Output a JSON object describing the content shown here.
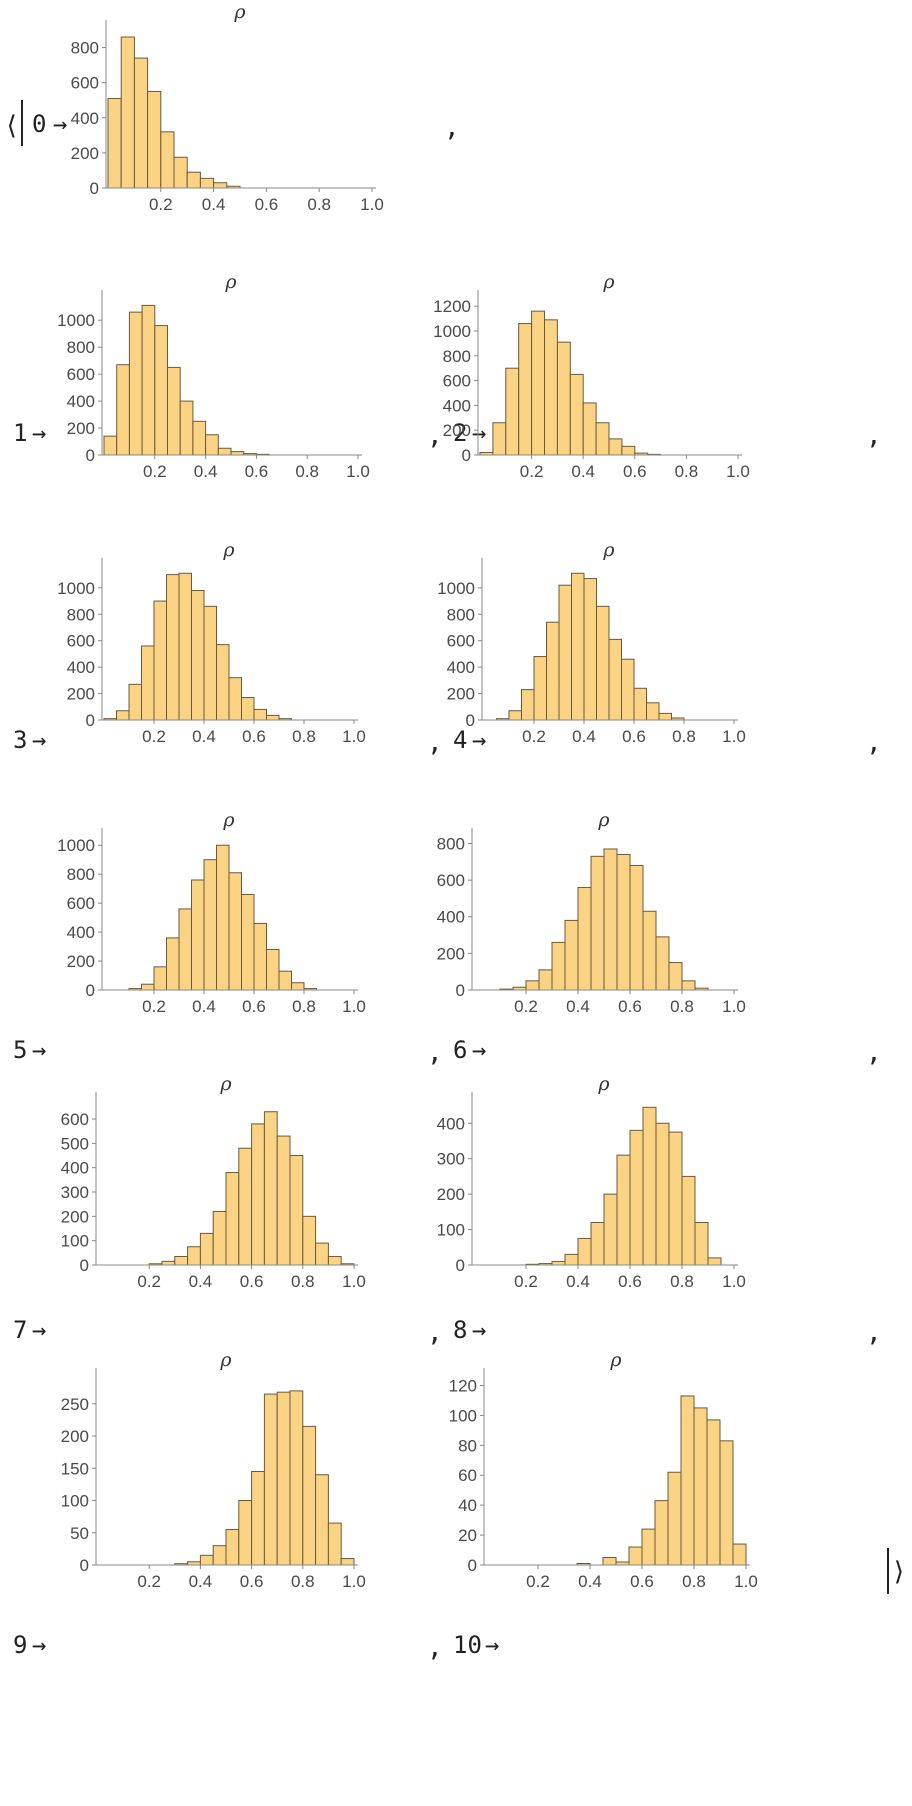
{
  "open_delim": "⟨",
  "close_delim": "⟩",
  "arrow": "→",
  "comma": ",",
  "colors": {
    "bar_fill": "#fbd384",
    "bar_edge": "#6b5a3a",
    "axis": "#888888"
  },
  "chart_data": [
    {
      "type": "bar",
      "key": "0",
      "title": "ρ",
      "bin_width": 0.05,
      "x_start": 0.0,
      "xlim": [
        0,
        1
      ],
      "ylim": [
        0,
        900
      ],
      "xticks": [
        "0.2",
        "0.4",
        "0.6",
        "0.8",
        "1.0"
      ],
      "yticks": [
        "0",
        "200",
        "400",
        "600",
        "800"
      ],
      "series": [
        {
          "values": [
            510,
            860,
            740,
            550,
            320,
            175,
            90,
            55,
            30,
            10,
            0,
            0,
            0,
            0,
            0,
            0,
            0,
            0,
            0,
            0
          ]
        }
      ]
    },
    {
      "type": "bar",
      "key": "1",
      "title": "ρ",
      "bin_width": 0.05,
      "x_start": 0.0,
      "xlim": [
        0,
        1
      ],
      "ylim": [
        0,
        1150
      ],
      "xticks": [
        "0.2",
        "0.4",
        "0.6",
        "0.8",
        "1.0"
      ],
      "yticks": [
        "0",
        "200",
        "400",
        "600",
        "800",
        "1000"
      ],
      "series": [
        {
          "values": [
            140,
            670,
            1060,
            1110,
            960,
            650,
            400,
            250,
            150,
            50,
            25,
            10,
            5,
            0,
            0,
            0,
            0,
            0,
            0,
            0
          ]
        }
      ]
    },
    {
      "type": "bar",
      "key": "2",
      "title": "ρ",
      "bin_width": 0.05,
      "x_start": 0.0,
      "xlim": [
        0,
        1
      ],
      "ylim": [
        0,
        1250
      ],
      "xticks": [
        "0.2",
        "0.4",
        "0.6",
        "0.8",
        "1.0"
      ],
      "yticks": [
        "0",
        "200",
        "400",
        "600",
        "800",
        "1000",
        "1200"
      ],
      "series": [
        {
          "values": [
            20,
            260,
            700,
            1060,
            1160,
            1090,
            910,
            650,
            420,
            260,
            130,
            70,
            15,
            5,
            0,
            0,
            0,
            0,
            0,
            0
          ]
        }
      ]
    },
    {
      "type": "bar",
      "key": "3",
      "title": "ρ",
      "bin_width": 0.05,
      "x_start": 0.0,
      "xlim": [
        0,
        1
      ],
      "ylim": [
        0,
        1150
      ],
      "xticks": [
        "0.2",
        "0.4",
        "0.6",
        "0.8",
        "1.0"
      ],
      "yticks": [
        "0",
        "200",
        "400",
        "600",
        "800",
        "1000"
      ],
      "series": [
        {
          "values": [
            10,
            70,
            270,
            560,
            900,
            1100,
            1110,
            980,
            860,
            570,
            320,
            170,
            80,
            35,
            10,
            0,
            0,
            0,
            0,
            0
          ]
        }
      ]
    },
    {
      "type": "bar",
      "key": "4",
      "title": "ρ",
      "bin_width": 0.05,
      "x_start": 0.0,
      "xlim": [
        0,
        1
      ],
      "ylim": [
        0,
        1150
      ],
      "xticks": [
        "0.2",
        "0.4",
        "0.6",
        "0.8",
        "1.0"
      ],
      "yticks": [
        "0",
        "200",
        "400",
        "600",
        "800",
        "1000"
      ],
      "series": [
        {
          "values": [
            0,
            10,
            70,
            230,
            480,
            740,
            1020,
            1110,
            1070,
            860,
            610,
            460,
            240,
            130,
            50,
            15,
            0,
            0,
            0,
            0
          ]
        }
      ]
    },
    {
      "type": "bar",
      "key": "5",
      "title": "ρ",
      "bin_width": 0.05,
      "x_start": 0.0,
      "xlim": [
        0,
        1
      ],
      "ylim": [
        0,
        1050
      ],
      "xticks": [
        "0.2",
        "0.4",
        "0.6",
        "0.8",
        "1.0"
      ],
      "yticks": [
        "0",
        "200",
        "400",
        "600",
        "800",
        "1000"
      ],
      "series": [
        {
          "values": [
            0,
            0,
            10,
            40,
            160,
            360,
            560,
            760,
            900,
            1000,
            810,
            660,
            460,
            280,
            130,
            50,
            10,
            0,
            0,
            0
          ]
        }
      ]
    },
    {
      "type": "bar",
      "key": "6",
      "title": "ρ",
      "bin_width": 0.05,
      "x_start": 0.0,
      "xlim": [
        0,
        1
      ],
      "ylim": [
        0,
        830
      ],
      "xticks": [
        "0.2",
        "0.4",
        "0.6",
        "0.8",
        "1.0"
      ],
      "yticks": [
        "0",
        "200",
        "400",
        "600",
        "800"
      ],
      "series": [
        {
          "values": [
            0,
            0,
            5,
            15,
            50,
            110,
            260,
            380,
            560,
            730,
            770,
            740,
            680,
            430,
            290,
            150,
            50,
            10,
            0,
            0
          ]
        }
      ]
    },
    {
      "type": "bar",
      "key": "7",
      "title": "ρ",
      "bin_width": 0.05,
      "x_start": 0.0,
      "xlim": [
        0,
        1
      ],
      "ylim": [
        0,
        670
      ],
      "xticks": [
        "0.2",
        "0.4",
        "0.6",
        "0.8",
        "1.0"
      ],
      "yticks": [
        "0",
        "100",
        "200",
        "300",
        "400",
        "500",
        "600"
      ],
      "series": [
        {
          "values": [
            0,
            0,
            0,
            0,
            5,
            15,
            35,
            75,
            130,
            220,
            380,
            480,
            580,
            630,
            530,
            450,
            200,
            90,
            35,
            5
          ]
        }
      ]
    },
    {
      "type": "bar",
      "key": "8",
      "title": "ρ",
      "bin_width": 0.05,
      "x_start": 0.0,
      "xlim": [
        0,
        1
      ],
      "ylim": [
        0,
        460
      ],
      "xticks": [
        "0.2",
        "0.4",
        "0.6",
        "0.8",
        "1.0"
      ],
      "yticks": [
        "0",
        "100",
        "200",
        "300",
        "400"
      ],
      "series": [
        {
          "values": [
            0,
            0,
            0,
            0,
            2,
            4,
            10,
            30,
            75,
            120,
            200,
            310,
            380,
            445,
            400,
            375,
            250,
            120,
            20,
            0
          ]
        }
      ]
    },
    {
      "type": "bar",
      "key": "9",
      "title": "ρ",
      "bin_width": 0.05,
      "x_start": 0.0,
      "xlim": [
        0,
        1
      ],
      "ylim": [
        0,
        290
      ],
      "xticks": [
        "0.2",
        "0.4",
        "0.6",
        "0.8",
        "1.0"
      ],
      "yticks": [
        "0",
        "50",
        "100",
        "150",
        "200",
        "250"
      ],
      "series": [
        {
          "values": [
            0,
            0,
            0,
            0,
            0,
            0,
            2,
            5,
            15,
            30,
            55,
            100,
            145,
            265,
            268,
            270,
            215,
            140,
            65,
            10
          ]
        }
      ]
    },
    {
      "type": "bar",
      "key": "10",
      "title": "ρ",
      "bin_width": 0.05,
      "x_start": 0.0,
      "xlim": [
        0,
        1
      ],
      "ylim": [
        0,
        125
      ],
      "xticks": [
        "0.2",
        "0.4",
        "0.6",
        "0.8",
        "1.0"
      ],
      "yticks": [
        "0",
        "20",
        "40",
        "60",
        "80",
        "100",
        "120"
      ],
      "series": [
        {
          "values": [
            0,
            0,
            0,
            0,
            0,
            0,
            0,
            1,
            0,
            5,
            2,
            12,
            24,
            43,
            62,
            113,
            105,
            97,
            83,
            14
          ]
        }
      ]
    }
  ]
}
